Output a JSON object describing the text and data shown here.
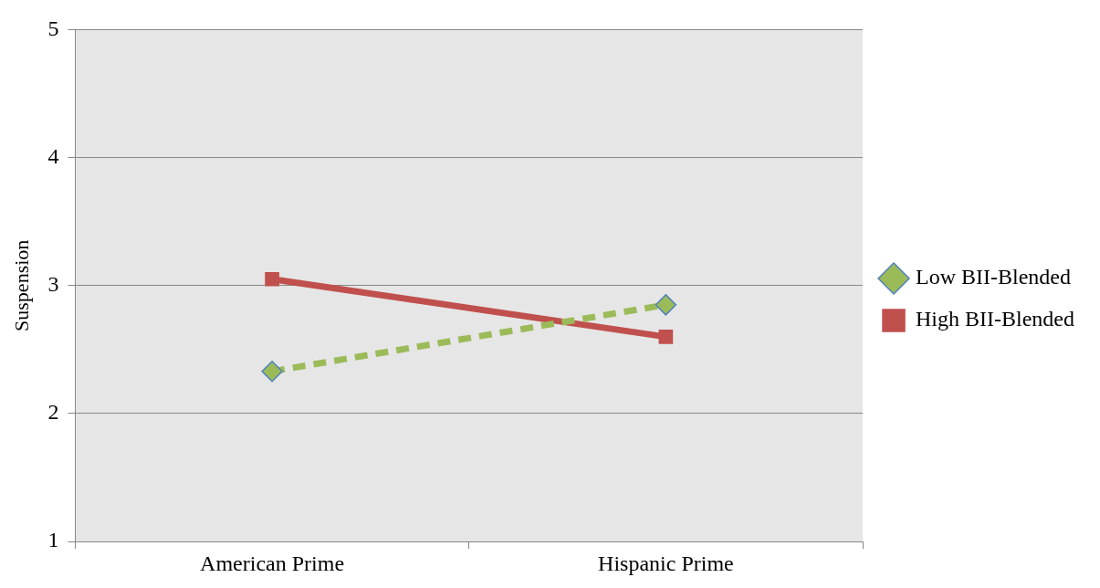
{
  "chart_data": {
    "type": "line",
    "ylabel": "Suspension",
    "categories": [
      "American Prime",
      "Hispanic Prime"
    ],
    "series": [
      {
        "name": "Low BII-Blended",
        "color": "#9bbb59",
        "values": [
          2.33,
          2.85
        ],
        "marker": "diamond",
        "line_style": "dashed"
      },
      {
        "name": "High BII-Blended",
        "color": "#c0504d",
        "values": [
          3.05,
          2.6
        ],
        "marker": "square",
        "line_style": "solid"
      }
    ],
    "ylim": [
      1,
      5
    ],
    "yticks": [
      1,
      2,
      3,
      4,
      5
    ],
    "grid": "y",
    "legend": "right"
  }
}
